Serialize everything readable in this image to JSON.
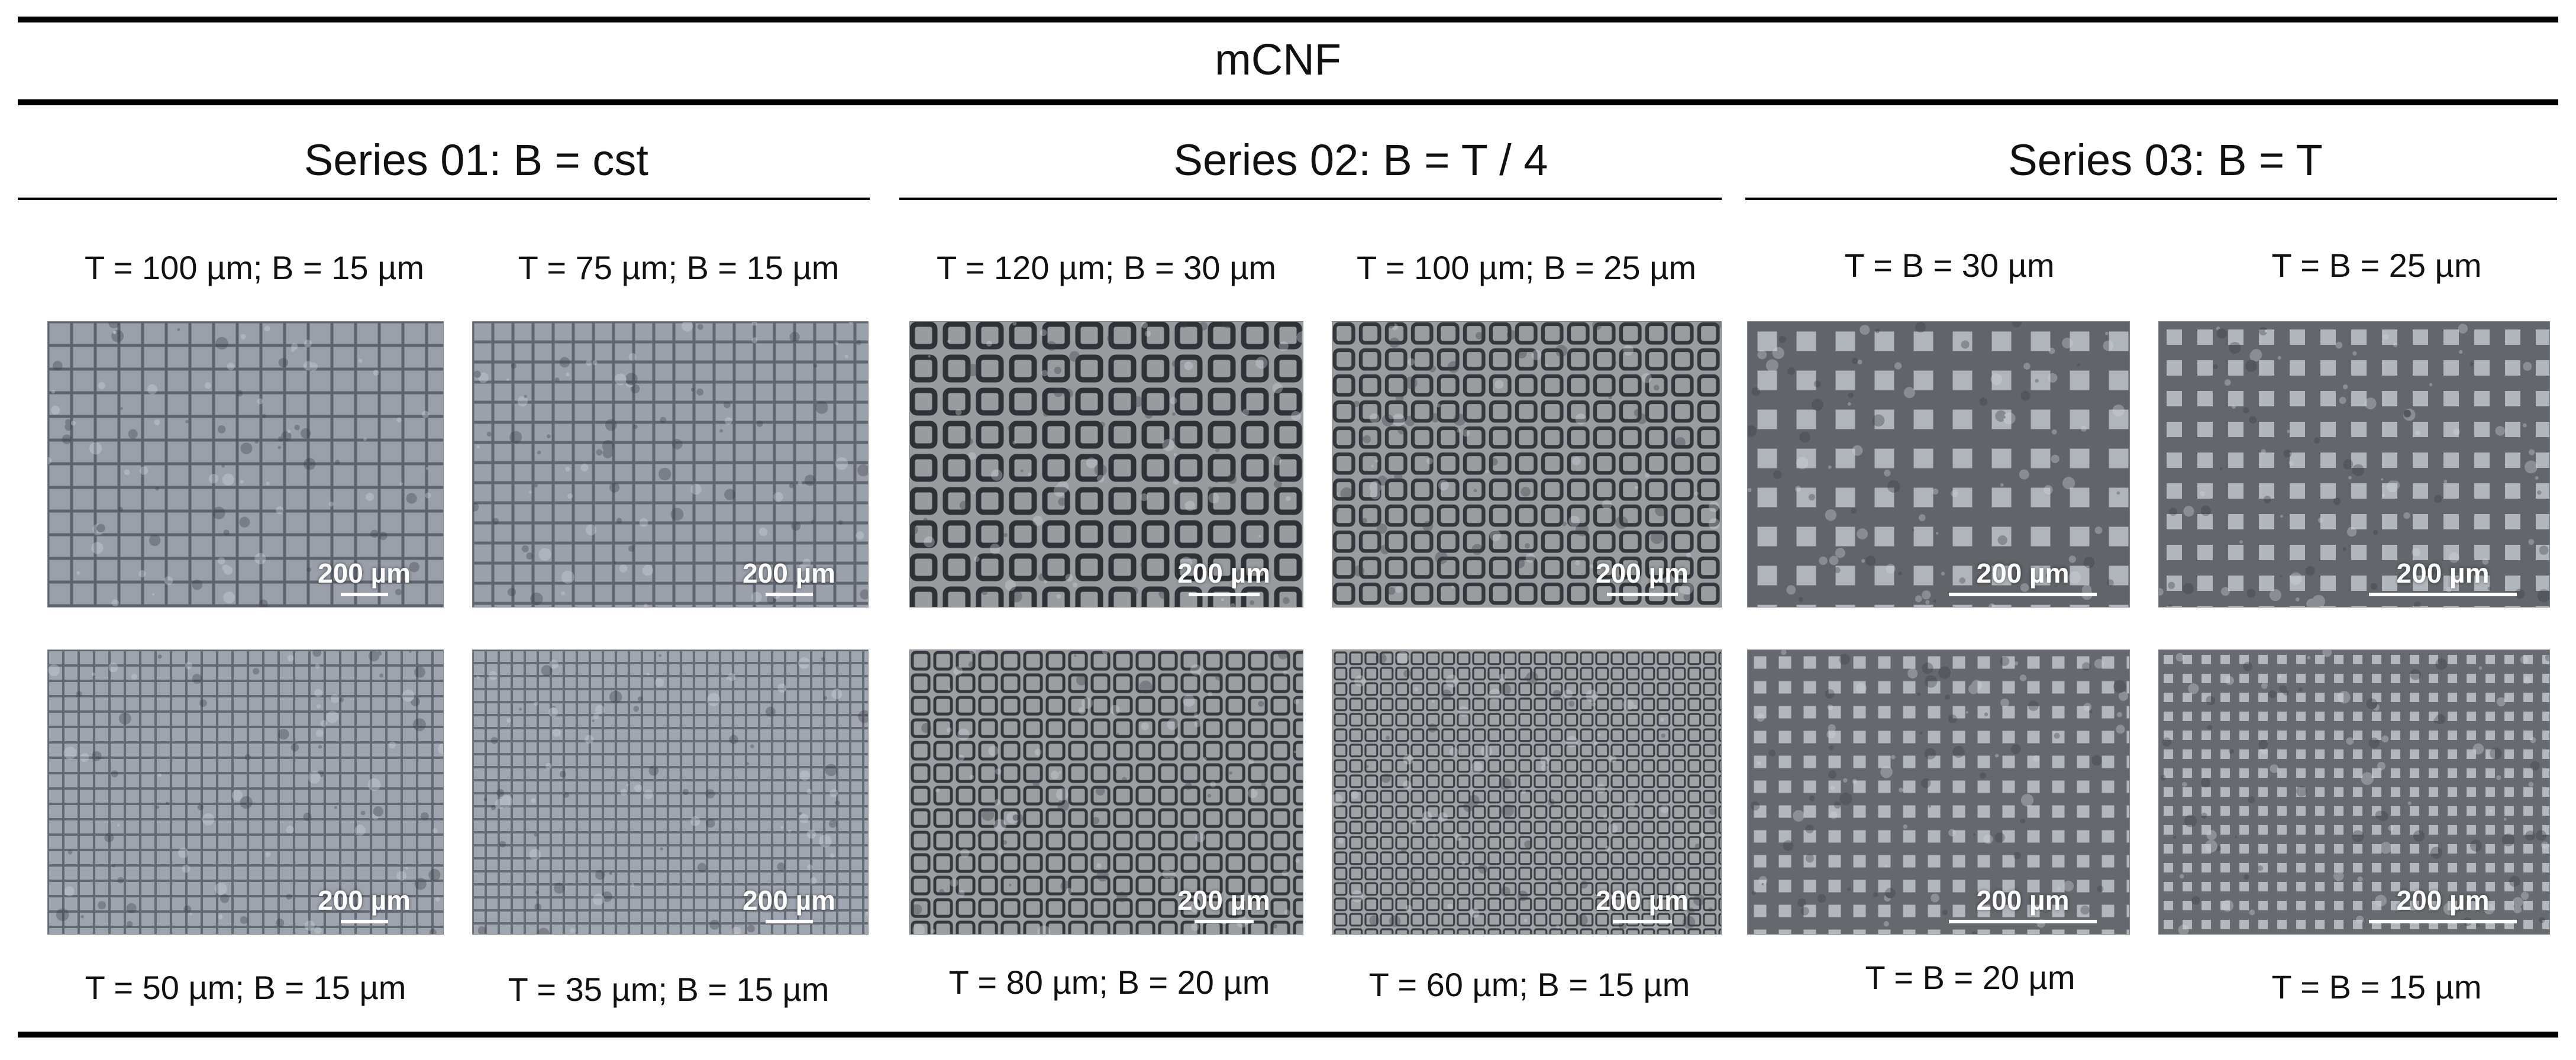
{
  "title": "mCNF",
  "scale_bar_label": "200 µm",
  "series": [
    {
      "title": "Series 01: B = cst",
      "captions": [
        "T = 100 µm; B = 15 µm",
        "T = 75 µm; B = 15 µm",
        "T = 50 µm; B = 15 µm",
        "T = 35 µm; B = 15 µm"
      ]
    },
    {
      "title": "Series 02: B = T / 4",
      "captions": [
        "T = 120 µm; B = 30 µm",
        "T = 100 µm; B = 25 µm",
        "T = 80 µm; B = 20 µm",
        "T = 60 µm; B = 15 µm"
      ]
    },
    {
      "title": "Series 03: B = T",
      "captions": [
        "T = B = 30 µm",
        "T = B = 25 µm",
        "T = B = 20 µm",
        "T = B = 15 µm"
      ]
    }
  ]
}
